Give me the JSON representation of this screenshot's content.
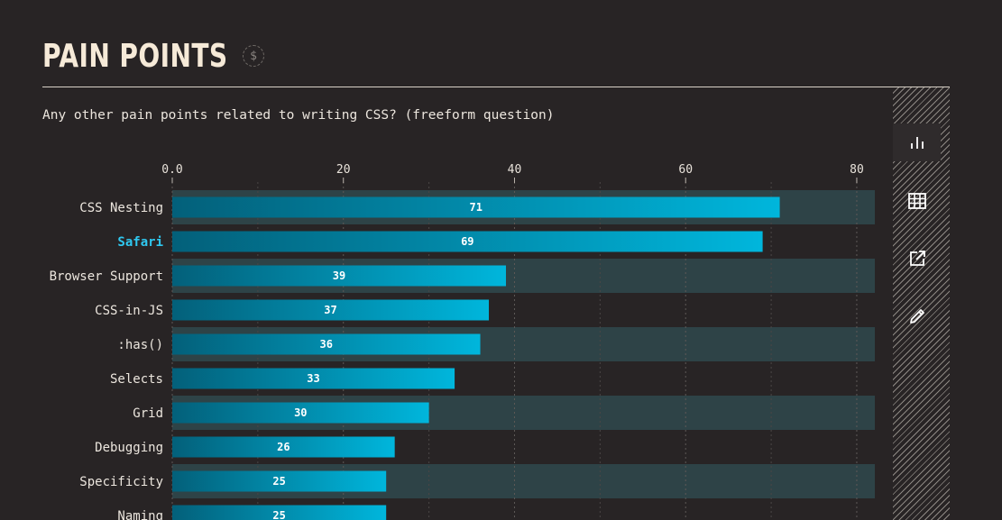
{
  "header": {
    "title": "PAIN POINTS",
    "coin_symbol": "$",
    "question": "Any other pain points related to writing CSS? (freeform question)"
  },
  "toolbar": {
    "items": [
      {
        "name": "bar-chart-icon",
        "active": true
      },
      {
        "name": "table-icon",
        "active": false
      },
      {
        "name": "share-icon",
        "active": false
      },
      {
        "name": "edit-icon",
        "active": false
      }
    ]
  },
  "colors": {
    "bar_start": "#03607a",
    "bar_end": "#00b6dc",
    "band": "#2e4347",
    "highlight": "#2fc8f0"
  },
  "chart_data": {
    "type": "bar",
    "orientation": "horizontal",
    "categories": [
      "CSS Nesting",
      "Safari",
      "Browser Support",
      "CSS-in-JS",
      ":has()",
      "Selects",
      "Grid",
      "Debugging",
      "Specificity",
      "Naming"
    ],
    "values": [
      71,
      69,
      39,
      37,
      36,
      33,
      30,
      26,
      25,
      25
    ],
    "highlighted": "Safari",
    "xlim": [
      0,
      82
    ],
    "xticks": [
      0,
      20,
      40,
      60,
      80
    ],
    "xtick_labels": [
      "0.0",
      "20",
      "40",
      "60",
      "80"
    ],
    "axis_position": "top",
    "grid": true
  }
}
